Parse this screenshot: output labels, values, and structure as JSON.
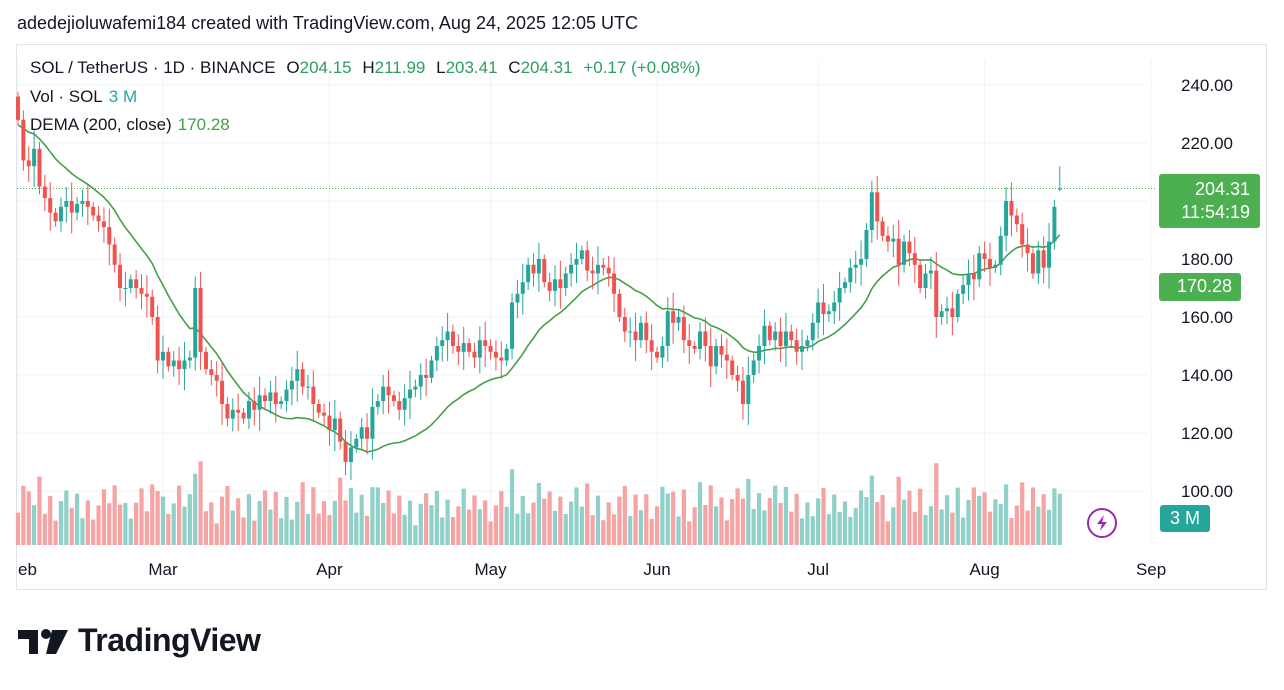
{
  "header": {
    "text": "adedejioluwafemi184 created with TradingView.com, Aug 24, 2025 12:05 UTC"
  },
  "legend": {
    "symbol": "SOL / TetherUS · 1D · BINANCE",
    "open_label": "O",
    "open": "204.15",
    "high_label": "H",
    "high": "211.99",
    "low_label": "L",
    "low": "203.41",
    "close_label": "C",
    "close": "204.31",
    "change": "+0.17 (+0.08%)",
    "vol_label": "Vol · SOL",
    "vol_value": "3 M",
    "dema_label": "DEMA (200, close)",
    "dema_value": "170.28"
  },
  "price_tag": {
    "price": "204.31",
    "countdown": "11:54:19"
  },
  "dema_tag": "170.28",
  "vol_tag": "3 M",
  "footer": {
    "brand": "TradingView"
  },
  "colors": {
    "up": "#26a69a",
    "down": "#ef5350",
    "vol_up": "#8fd0c8",
    "vol_down": "#f5a3a3",
    "dema": "#43a047",
    "tag": "#4caf50",
    "bolt": "#9c27b0"
  },
  "chart_data": {
    "type": "candlestick",
    "title": "SOL / TetherUS · 1D · BINANCE",
    "y_ticks": [
      100,
      120,
      140,
      160,
      180,
      200,
      220,
      240
    ],
    "y_tick_labels": [
      "100.00",
      "120.00",
      "140.00",
      "160.00",
      "180.00",
      "",
      "220.00",
      "240.00"
    ],
    "ylim": [
      82,
      245
    ],
    "x_tick_labels": [
      "eb",
      "Mar",
      "Apr",
      "May",
      "Jun",
      "Jul",
      "Aug",
      "Sep"
    ],
    "x_tick_days": [
      0,
      27,
      58,
      88,
      119,
      149,
      180,
      211
    ],
    "first_day": "2025-02-01",
    "candles": [],
    "close": [
      228,
      214,
      212,
      218,
      205,
      201,
      196,
      193,
      198,
      200,
      196,
      199,
      200,
      198,
      195,
      193,
      191,
      185,
      178,
      170,
      170,
      173,
      170,
      168,
      167,
      160,
      145,
      148,
      143,
      145,
      142,
      145,
      146,
      170,
      148,
      142,
      140,
      138,
      130,
      125,
      128,
      127,
      125,
      131,
      128,
      133,
      131,
      134,
      130,
      131,
      135,
      138,
      142,
      136,
      136,
      130,
      127,
      126,
      121,
      125,
      117,
      110,
      115,
      118,
      122,
      118,
      129,
      131,
      136,
      133,
      131,
      128,
      132,
      135,
      136,
      140,
      139,
      145,
      150,
      152,
      155,
      150,
      148,
      151,
      148,
      146,
      152,
      150,
      148,
      146,
      145,
      149,
      165,
      168,
      172,
      178,
      175,
      180,
      172,
      169,
      173,
      170,
      175,
      178,
      180,
      183,
      176,
      175,
      178,
      177,
      175,
      168,
      160,
      155,
      155,
      152,
      158,
      152,
      148,
      146,
      150,
      162,
      158,
      160,
      152,
      150,
      149,
      155,
      150,
      143,
      150,
      147,
      145,
      140,
      138,
      130,
      140,
      145,
      150,
      157,
      152,
      155,
      150,
      155,
      152,
      148,
      150,
      152,
      158,
      165,
      161,
      162,
      165,
      170,
      172,
      177,
      178,
      180,
      190,
      203,
      193,
      188,
      186,
      187,
      178,
      186,
      182,
      178,
      170,
      175,
      176,
      160,
      162,
      163,
      160,
      168,
      171,
      175,
      173,
      182,
      180,
      177,
      178,
      188,
      200,
      195,
      192,
      185,
      182,
      175,
      183,
      177,
      186,
      198,
      204
    ],
    "dema": [],
    "volume_note": "Vol · SOL 3 M"
  }
}
